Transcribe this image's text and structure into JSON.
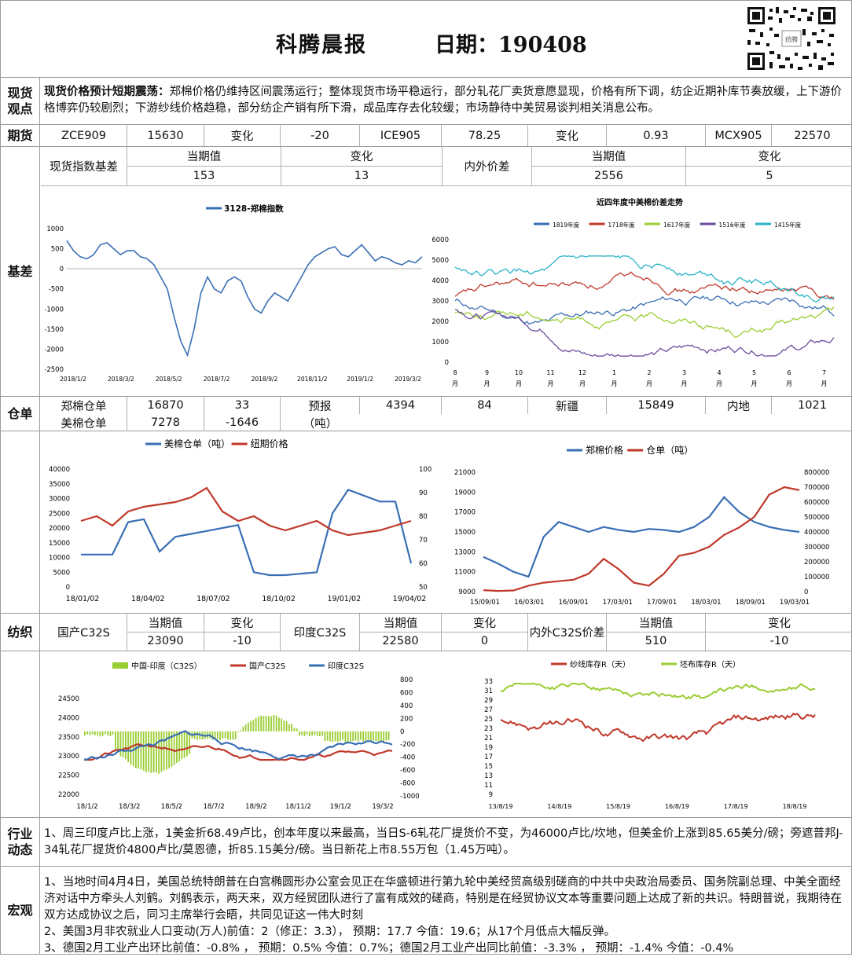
{
  "header": {
    "title": "科腾晨报",
    "date": "日期：190408"
  },
  "spot": {
    "label": "现货观点",
    "headline": "现货价格预计短期震荡：",
    "text": "郑棉价格仍维持区间震荡运行；整体现货市场平稳运行，部分轧花厂卖货意愿显现，价格有所下调，纺企近期补库节奏放缓，上下游价格博弈仍较剧烈；下游纱线价格趋稳，部分纺企产销有所下滑，成品库存去化较缓；市场静待中美贸易谈判相关消息公布。"
  },
  "futures": {
    "label": "期货",
    "cells": [
      "ZCE909",
      "15630",
      "变化",
      "-20",
      "ICE905",
      "78.25",
      "变化",
      "0.93",
      "MCX905",
      "22570"
    ]
  },
  "basis": {
    "label": "基差",
    "index_label": "现货指数基差",
    "cur_label": "当期值",
    "chg_label": "变化",
    "cur": "153",
    "chg": "13",
    "inout_label": "内外价差",
    "cur_label2": "当期值",
    "chg_label2": "变化",
    "cur2": "2556",
    "chg2": "5"
  },
  "warehouse": {
    "label": "仓单",
    "r1": [
      "郑棉仓单",
      "16870",
      "33",
      "预报",
      "4394",
      "84",
      "新疆",
      "15849",
      "内地",
      "1021"
    ],
    "r2": [
      "美棉仓单",
      "7278",
      "-1646",
      "（吨）"
    ]
  },
  "textile": {
    "label": "纺织",
    "cells": [
      "国产C32S",
      "当期值",
      "变化",
      "印度C32S",
      "当期值",
      "变化",
      "内外C32S价差",
      "当期值",
      "变化"
    ],
    "vals": [
      "23090",
      "-10",
      "22580",
      "0",
      "510",
      "-10"
    ]
  },
  "industry": {
    "label": "行业动态",
    "text": "1、周三印度卢比上涨，1美金折68.49卢比，创本年度以来最高，当日S-6轧花厂提货价不变，为46000卢比/坎地，但美金价上涨到85.65美分/磅；旁遮普邦J-34轧花厂提货价4800卢比/莫恩德，折85.15美分/磅。当日新花上市8.55万包（1.45万吨）。"
  },
  "macro": {
    "label": "宏观",
    "lines": [
      "1、当地时间4月4日，美国总统特朗普在白宫椭圆形办公室会见正在华盛顿进行第九轮中美经贸高级别磋商的中共中央政治局委员、国务院副总理、中美全面经济对话中方牵头人刘鹤。刘鹤表示，两天来，双方经贸团队进行了富有成效的磋商，特别是在经贸协议文本等重要问题上达成了新的共识。特朗普说，我期待在双方达成协议之后，同习主席举行会晤，共同见证这一伟大时刻",
      "2、美国3月非农就业人口变动(万人)前值：2（修正：3.3）， 预期：17.7 今值：19.6；从17个月低点大幅反弹。",
      "3、德国2月工业产出环比前值：-0.8% ， 预期：0.5% 今值：0.7%；德国2月工业产出同比前值：-3.3% ， 预期：-1.4% 今值：-0.4%"
    ]
  },
  "chart_data": [
    {
      "type": "line",
      "title": "",
      "series": [
        {
          "name": "3128-郑棉指数",
          "color": "#3a6fb5"
        }
      ],
      "yticks": [
        "1000",
        "500",
        "0",
        "-500",
        "-1000",
        "-1500",
        "-2000",
        "-2500"
      ],
      "ylim": [
        -2500,
        1000
      ],
      "xticks": [
        "2018/1/2",
        "2018/3/2",
        "2018/5/2",
        "2018/7/2",
        "2018/9/2",
        "2018/11/2",
        "2019/1/2",
        "2019/3/2"
      ],
      "values": [
        700,
        450,
        300,
        250,
        350,
        600,
        650,
        500,
        350,
        450,
        450,
        300,
        250,
        100,
        -200,
        -500,
        -1200,
        -1800,
        -2150,
        -1500,
        -600,
        -200,
        -500,
        -600,
        -300,
        -200,
        -300,
        -700,
        -1000,
        -1100,
        -800,
        -600,
        -700,
        -800,
        -500,
        -200,
        100,
        300,
        400,
        500,
        550,
        350,
        300,
        450,
        600,
        400,
        200,
        300,
        250,
        150,
        100,
        200,
        150,
        300
      ]
    },
    {
      "type": "line",
      "title": "近四年度中美棉价差走势",
      "series": [
        {
          "name": "1819年度",
          "color": "#3a6fb5"
        },
        {
          "name": "1718年度",
          "color": "#c0392b"
        },
        {
          "name": "1617年度",
          "color": "#9acd32"
        },
        {
          "name": "1516年度",
          "color": "#6a4c9c"
        },
        {
          "name": "1415年度",
          "color": "#2bb3c7"
        }
      ],
      "yticks": [
        "6000",
        "5000",
        "4000",
        "3000",
        "2000",
        "1000",
        "0"
      ],
      "ylim": [
        0,
        6000
      ],
      "xticks": [
        "8月",
        "9月",
        "10月",
        "11月",
        "12月",
        "1月",
        "2月",
        "3月",
        "4月",
        "5月",
        "6月",
        "7月"
      ]
    },
    {
      "type": "line",
      "title": "",
      "series": [
        {
          "name": "美棉仓单（吨）",
          "color": "#3a6fb5"
        },
        {
          "name": "纽期价格",
          "color": "#c0392b"
        }
      ],
      "yticks_left": [
        "40000",
        "35000",
        "30000",
        "25000",
        "20000",
        "15000",
        "10000",
        "5000",
        "0"
      ],
      "yticks_right": [
        "100",
        "90",
        "80",
        "70",
        "60",
        "50"
      ],
      "xticks": [
        "18/01/02",
        "18/04/02",
        "18/07/02",
        "18/10/02",
        "19/01/02",
        "19/04/02"
      ],
      "s1": [
        11000,
        11000,
        11000,
        22000,
        23000,
        12000,
        17000,
        18000,
        19000,
        20000,
        21000,
        5000,
        4000,
        4000,
        4500,
        5000,
        25000,
        33000,
        31000,
        29000,
        29000,
        8000
      ],
      "s2": [
        78,
        80,
        76,
        82,
        84,
        85,
        86,
        88,
        92,
        82,
        78,
        80,
        76,
        74,
        76,
        78,
        74,
        72,
        73,
        74,
        76,
        78
      ]
    },
    {
      "type": "line",
      "title": "",
      "series": [
        {
          "name": "郑棉价格",
          "color": "#3a6fb5"
        },
        {
          "name": "仓单（吨）",
          "color": "#c0392b"
        }
      ],
      "yticks_left": [
        "21000",
        "19000",
        "17000",
        "15000",
        "13000",
        "11000",
        "9000"
      ],
      "yticks_right": [
        "800000",
        "700000",
        "600000",
        "500000",
        "400000",
        "300000",
        "200000",
        "100000",
        "0"
      ],
      "xticks": [
        "15/09/01",
        "16/03/01",
        "16/09/01",
        "17/03/01",
        "17/09/01",
        "18/03/01",
        "18/09/01",
        "19/03/01"
      ],
      "s1": [
        12500,
        11800,
        11000,
        10500,
        14500,
        16000,
        15500,
        15000,
        15500,
        15200,
        15000,
        15300,
        15200,
        15000,
        15500,
        16500,
        18500,
        17000,
        16000,
        15500,
        15200,
        15000
      ],
      "s2": [
        10000,
        5000,
        8000,
        40000,
        60000,
        70000,
        80000,
        120000,
        220000,
        150000,
        60000,
        40000,
        120000,
        240000,
        260000,
        300000,
        380000,
        430000,
        500000,
        650000,
        700000,
        680000
      ]
    },
    {
      "type": "line",
      "title": "",
      "series": [
        {
          "name": "中国-印度（C32S）",
          "color": "#9acd32"
        },
        {
          "name": "国产C32S",
          "color": "#c0392b"
        },
        {
          "name": "印度C32S",
          "color": "#3a6fb5"
        }
      ],
      "yticks_left": [
        "24500",
        "24000",
        "23500",
        "23000",
        "22500",
        "22000"
      ],
      "yticks_right": [
        "800",
        "600",
        "400",
        "200",
        "0",
        "-200",
        "-400",
        "-600",
        "-800",
        "-1000"
      ],
      "xticks": [
        "18/1/2",
        "18/3/2",
        "18/5/2",
        "18/7/2",
        "18/9/2",
        "18/11/2",
        "19/1/2",
        "19/3/2"
      ]
    },
    {
      "type": "line",
      "title": "",
      "series": [
        {
          "name": "纱线库存R（天）",
          "color": "#c0392b"
        },
        {
          "name": "坯布库存R（天）",
          "color": "#9acd32"
        }
      ],
      "yticks": [
        "33",
        "31",
        "29",
        "27",
        "25",
        "23",
        "21",
        "19",
        "17",
        "15",
        "13",
        "11",
        "9"
      ],
      "xticks": [
        "13/8/19",
        "14/8/19",
        "15/8/19",
        "16/8/19",
        "17/8/19",
        "18/8/19"
      ]
    }
  ]
}
